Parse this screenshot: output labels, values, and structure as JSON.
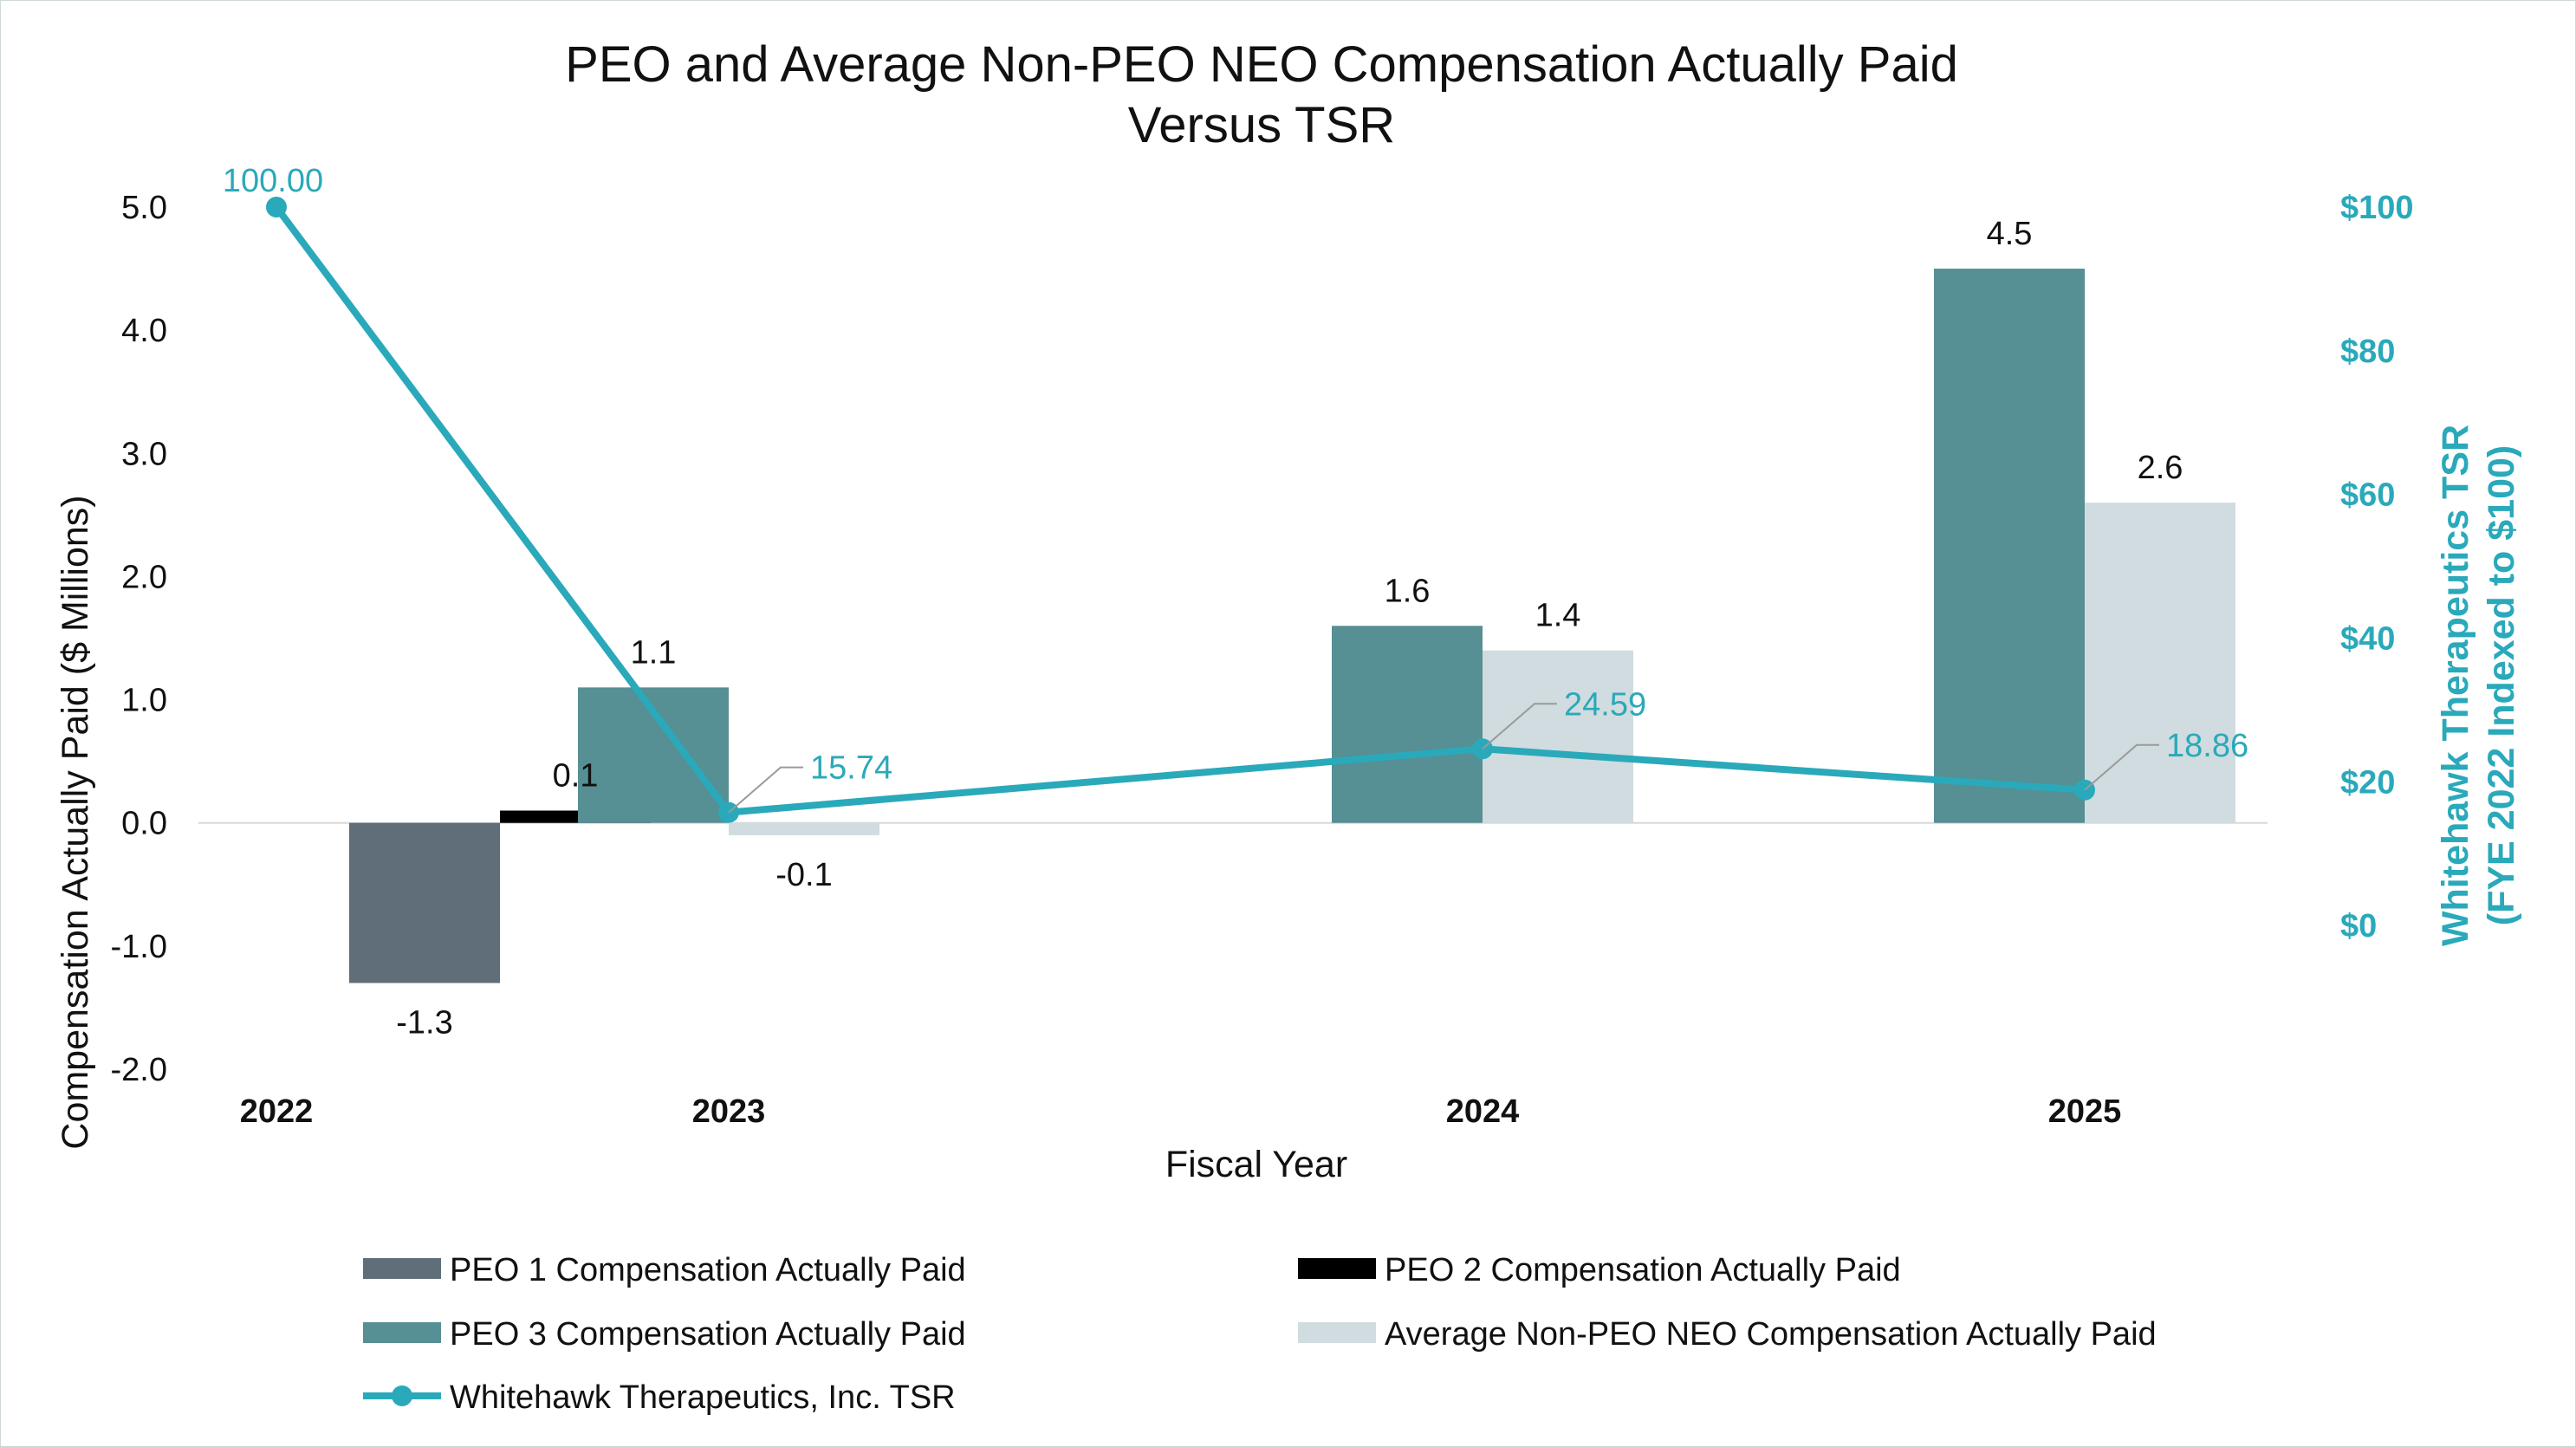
{
  "colors": {
    "peo1": "#5f6e78",
    "peo2": "#000000",
    "peo3": "#568f94",
    "non_peo": "#d0dcdf",
    "tsr": "#2aa9ba",
    "axis_line": "#d9d9d9",
    "leader": "#9a9a9a"
  },
  "chart_data": {
    "type": "bar",
    "title_lines": [
      "PEO and Average Non-PEO NEO Compensation Actually Paid",
      "Versus TSR"
    ],
    "xlabel": "Fiscal Year",
    "ylabel": "Compensation Actually Paid ($ Millions)",
    "y2label_lines": [
      "Whitehawk Therapeutics TSR",
      "(FYE 2022 Indexed to $100)"
    ],
    "categories": [
      "2022",
      "2023",
      "2024",
      "2025"
    ],
    "ylim": [
      -2.0,
      5.0
    ],
    "yticks": [
      "-2.0",
      "-1.0",
      "0.0",
      "1.0",
      "2.0",
      "3.0",
      "4.0",
      "5.0"
    ],
    "y2lim": [
      -20,
      100
    ],
    "y2ticks": [
      "$0",
      "$20",
      "$40",
      "$60",
      "$80",
      "$100"
    ],
    "series": [
      {
        "name": "PEO 1 Compensation Actually Paid",
        "kind": "bar",
        "color_key": "peo1",
        "points": [
          {
            "x": "2022",
            "value": -1.3,
            "label": "-1.3"
          }
        ]
      },
      {
        "name": "PEO 2 Compensation Actually Paid",
        "kind": "bar",
        "color_key": "peo2",
        "points": [
          {
            "x": "2022",
            "value": 0.1,
            "label": "0.1"
          }
        ]
      },
      {
        "name": "PEO 3 Compensation Actually Paid",
        "kind": "bar",
        "color_key": "peo3",
        "points": [
          {
            "x": "2023",
            "value": 1.1,
            "label": "1.1"
          },
          {
            "x": "2024",
            "value": 1.6,
            "label": "1.6"
          },
          {
            "x": "2025",
            "value": 4.5,
            "label": "4.5"
          }
        ]
      },
      {
        "name": "Average Non-PEO NEO Compensation Actually Paid",
        "kind": "bar",
        "color_key": "non_peo",
        "points": [
          {
            "x": "2023",
            "value": -0.1,
            "label": "-0.1"
          },
          {
            "x": "2024",
            "value": 1.4,
            "label": "1.4"
          },
          {
            "x": "2025",
            "value": 2.6,
            "label": "2.6"
          }
        ]
      },
      {
        "name": "Whitehawk Therapeutics, Inc. TSR",
        "kind": "line",
        "axis": "right",
        "color_key": "tsr",
        "points": [
          {
            "x": "2022",
            "value": 100.0,
            "label": "100.00"
          },
          {
            "x": "2023",
            "value": 15.74,
            "label": "15.74"
          },
          {
            "x": "2024",
            "value": 24.59,
            "label": "24.59"
          },
          {
            "x": "2025",
            "value": 18.86,
            "label": "18.86"
          }
        ]
      }
    ],
    "legend_position": "bottom",
    "legend": [
      "PEO 1 Compensation Actually Paid",
      "PEO 2 Compensation Actually Paid",
      "PEO 3 Compensation Actually Paid",
      "Average Non-PEO NEO Compensation Actually Paid",
      "Whitehawk Therapeutics, Inc. TSR"
    ],
    "grid": false
  }
}
